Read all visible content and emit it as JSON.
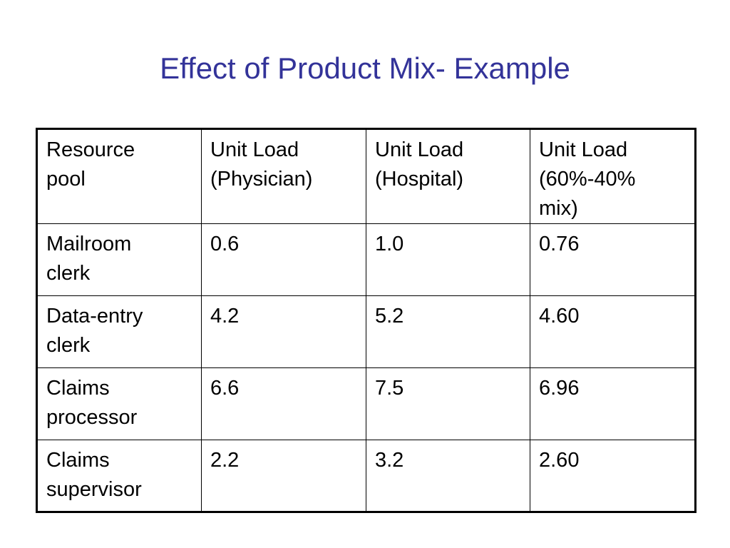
{
  "slide": {
    "title": "Effect of Product Mix- Example"
  },
  "table": {
    "headers": [
      [
        "Resource",
        "pool"
      ],
      [
        "Unit Load",
        "(Physician)"
      ],
      [
        "Unit Load",
        "(Hospital)"
      ],
      [
        "Unit Load",
        "(60%-40%",
        "mix)"
      ]
    ],
    "rows": [
      {
        "resource": [
          "Mailroom",
          "clerk"
        ],
        "physician": "0.6",
        "hospital": "1.0",
        "mix": "0.76"
      },
      {
        "resource": [
          "Data-entry",
          "clerk"
        ],
        "physician": "4.2",
        "hospital": "5.2",
        "mix": "4.60"
      },
      {
        "resource": [
          "Claims",
          "processor"
        ],
        "physician": "6.6",
        "hospital": "7.5",
        "mix": "6.96"
      },
      {
        "resource": [
          "Claims",
          "supervisor"
        ],
        "physician": "2.2",
        "hospital": "3.2",
        "mix": "2.60"
      }
    ]
  },
  "colors": {
    "title": "#333399",
    "text": "#000000",
    "border": "#000000",
    "background": "#ffffff"
  }
}
